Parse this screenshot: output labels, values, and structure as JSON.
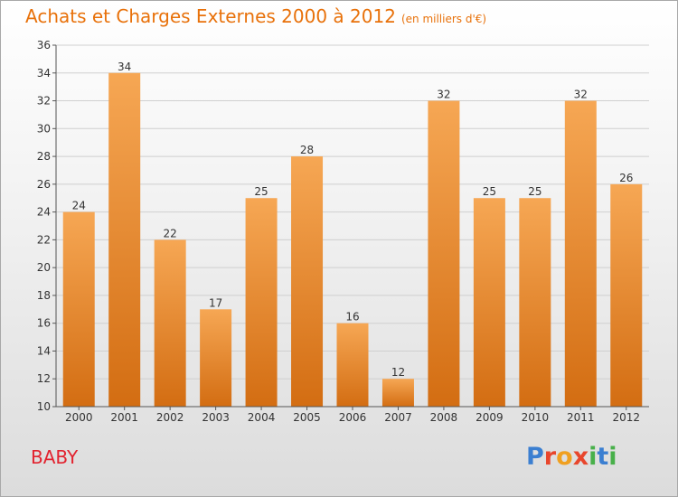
{
  "header": {
    "title": "Achats et Charges Externes 2000 à 2012",
    "unit": "(en milliers d'€)"
  },
  "footer": {
    "commune": "BABY",
    "logo_text": "Proxiti"
  },
  "colors": {
    "title": "#e8710a",
    "commune": "#e2232f",
    "bar_top": "#f6a754",
    "bar_bottom": "#d36d12",
    "logo_letters": [
      "#3b7fd1",
      "#e8462c",
      "#f0a020",
      "#e8462c",
      "#48b04a",
      "#3b7fd1",
      "#48b04a"
    ]
  },
  "chart_data": {
    "type": "bar",
    "title": "Achats et Charges Externes 2000 à 2012",
    "subtitle": "(en milliers d'€)",
    "categories": [
      "2000",
      "2001",
      "2002",
      "2003",
      "2004",
      "2005",
      "2006",
      "2007",
      "2008",
      "2009",
      "2010",
      "2011",
      "2012"
    ],
    "values": [
      24,
      34,
      22,
      17,
      25,
      28,
      16,
      12,
      32,
      25,
      25,
      32,
      26
    ],
    "ylim": [
      10,
      36
    ],
    "yticks": [
      10,
      12,
      14,
      16,
      18,
      20,
      22,
      24,
      26,
      28,
      30,
      32,
      34,
      36
    ],
    "grid": true,
    "xlabel": "",
    "ylabel": ""
  }
}
